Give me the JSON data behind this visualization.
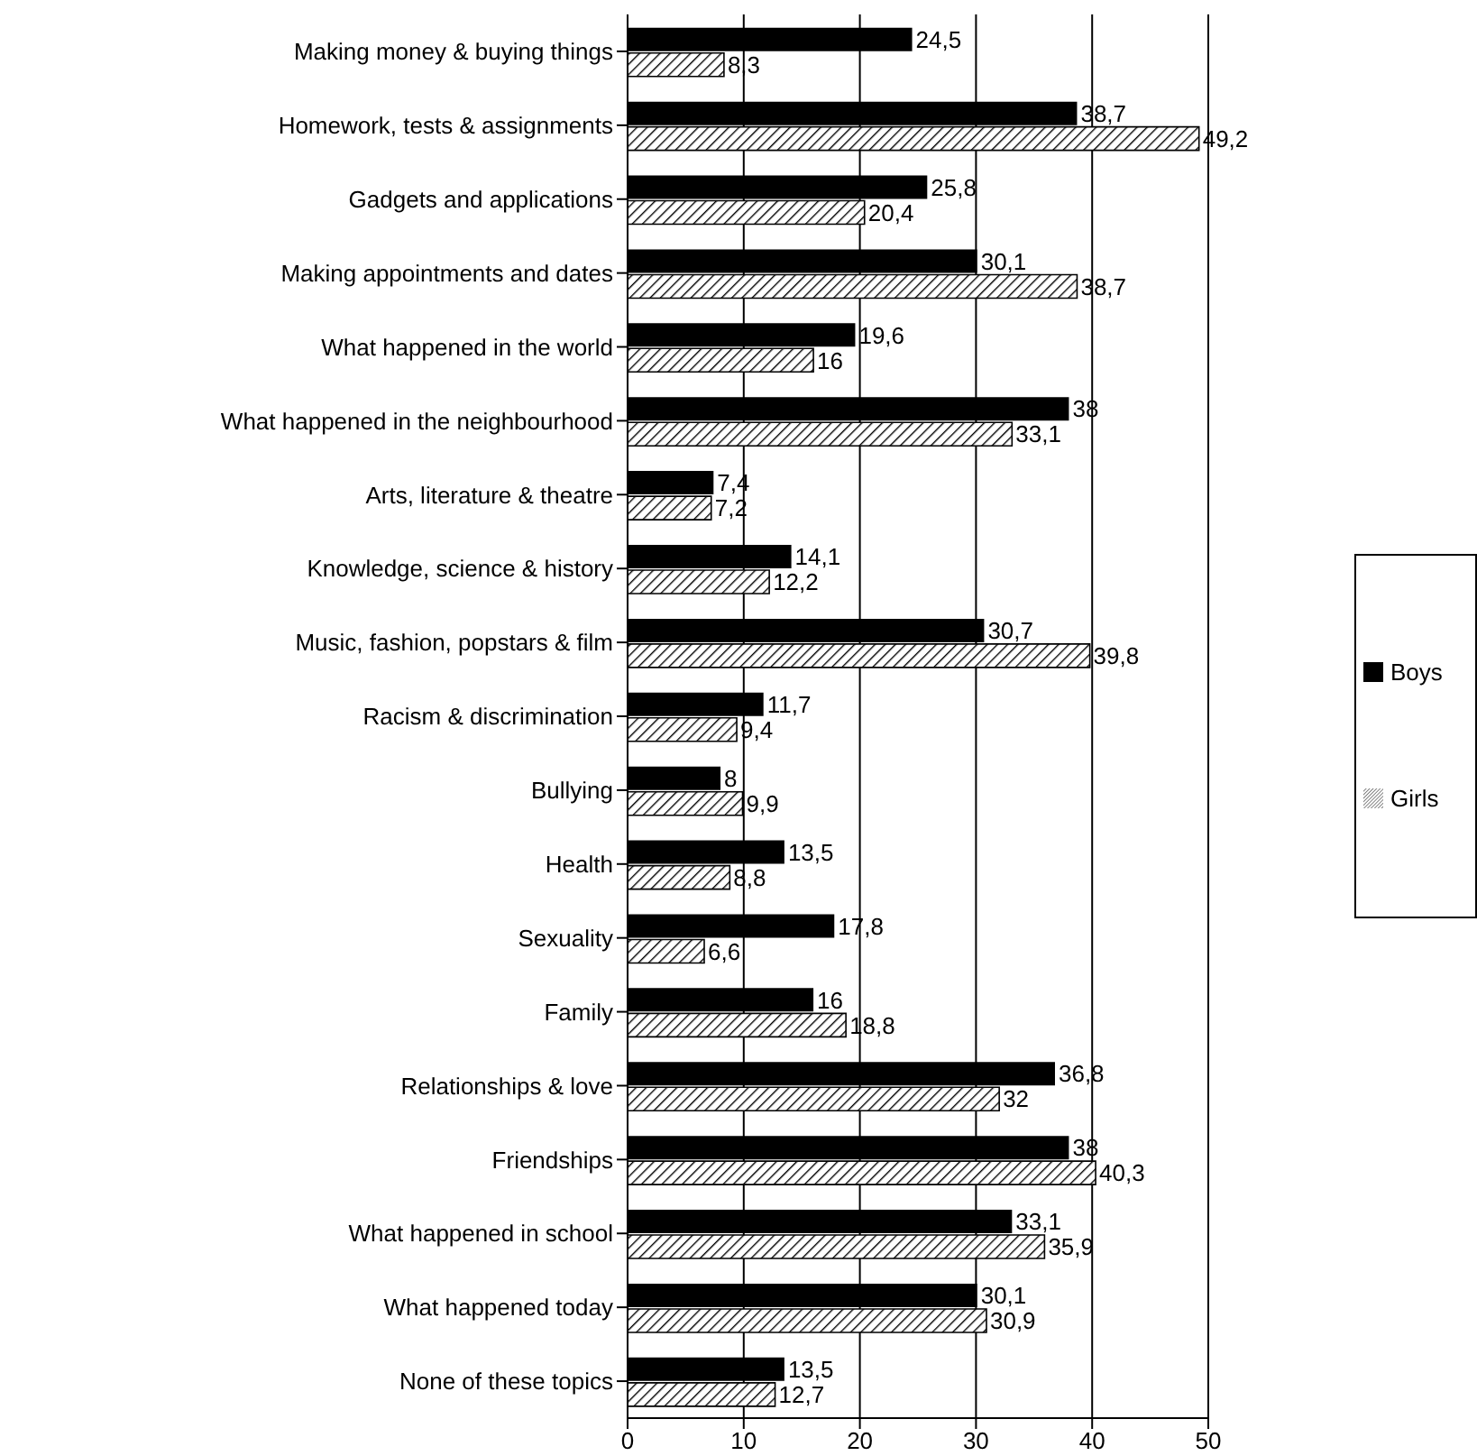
{
  "chart_data": {
    "type": "bar",
    "orientation": "horizontal",
    "categories": [
      "Making money & buying things",
      "Homework, tests & assignments",
      "Gadgets and applications",
      "Making appointments and dates",
      "What happened in the world",
      "What happened in the neighbourhood",
      "Arts, literature & theatre",
      "Knowledge, science & history",
      "Music, fashion, popstars & film",
      "Racism & discrimination",
      "Bullying",
      "Health",
      "Sexuality",
      "Family",
      "Relationships & love",
      "Friendships",
      "What happened in school",
      "What happened today",
      "None of these topics"
    ],
    "series": [
      {
        "name": "Boys",
        "color": "#000000",
        "values": [
          24.5,
          38.7,
          25.8,
          30.1,
          19.6,
          38,
          7.4,
          14.1,
          30.7,
          11.7,
          8,
          13.5,
          17.8,
          16,
          36.8,
          38,
          33.1,
          30.1,
          13.5
        ],
        "value_labels": [
          "24,5",
          "38,7",
          "25,8",
          "30,1",
          "19,6",
          "38",
          "7,4",
          "14,1",
          "30,7",
          "11,7",
          "8",
          "13,5",
          "17,8",
          "16",
          "36,8",
          "38",
          "33,1",
          "30,1",
          "13,5"
        ]
      },
      {
        "name": "Girls",
        "color": "#000000",
        "values": [
          8.3,
          49.2,
          20.4,
          38.7,
          16,
          33.1,
          7.2,
          12.2,
          39.8,
          9.4,
          9.9,
          8.8,
          6.6,
          18.8,
          32,
          40.3,
          35.9,
          30.9,
          12.7
        ],
        "value_labels": [
          "8,3",
          "49,2",
          "20,4",
          "38,7",
          "16",
          "33,1",
          "7,2",
          "12,2",
          "39,8",
          "9,4",
          "9,9",
          "8,8",
          "6,6",
          "18,8",
          "32",
          "40,3",
          "35,9",
          "30,9",
          "12,7"
        ]
      }
    ],
    "xlim": [
      0,
      50
    ],
    "xticks": [
      0,
      10,
      20,
      30,
      40,
      50
    ],
    "grid": "x",
    "legend": "right"
  }
}
